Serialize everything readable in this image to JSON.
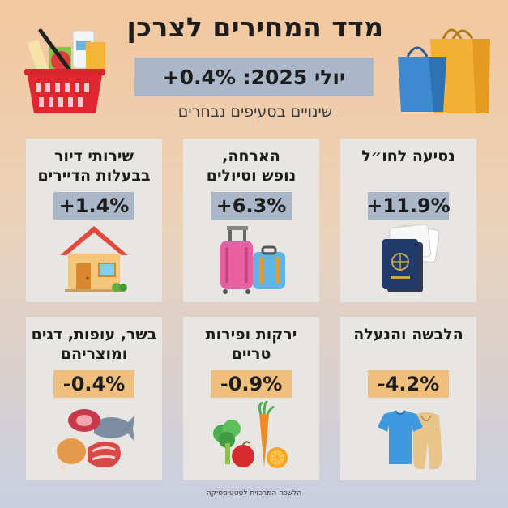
{
  "header": {
    "title": "מדד המחירים לצרכן",
    "headline": "יולי 2025: 0.4%+",
    "subtitle": "שינויים בסעיפים נבחרים"
  },
  "cards": [
    {
      "title": "נסיעה לחו״ל",
      "change": "+11.9%",
      "direction": "up",
      "icon": "passport-tickets-icon"
    },
    {
      "title": "הארחה,\nנופש וטיולים",
      "change": "+6.3%",
      "direction": "up",
      "icon": "suitcases-icon"
    },
    {
      "title": "שירותי דיור\nבבעלות הדיירים",
      "change": "+1.4%",
      "direction": "up",
      "icon": "house-icon"
    },
    {
      "title": "הלבשה והנעלה",
      "change": "-4.2%",
      "direction": "down",
      "icon": "clothing-icon"
    },
    {
      "title": "ירקות ופירות\nטריים",
      "change": "-0.9%",
      "direction": "down",
      "icon": "produce-icon"
    },
    {
      "title": "בשר, עופות, דגים\nומוצריהם",
      "change": "-0.4%",
      "direction": "down",
      "icon": "meat-fish-icon"
    }
  ],
  "footer": {
    "source": "הלשכה המרכזית לסטטיסטיקה"
  },
  "colors": {
    "up_badge": "#a9b7c8",
    "down_badge": "#f0bf7c",
    "card": "#e8e6e3"
  }
}
